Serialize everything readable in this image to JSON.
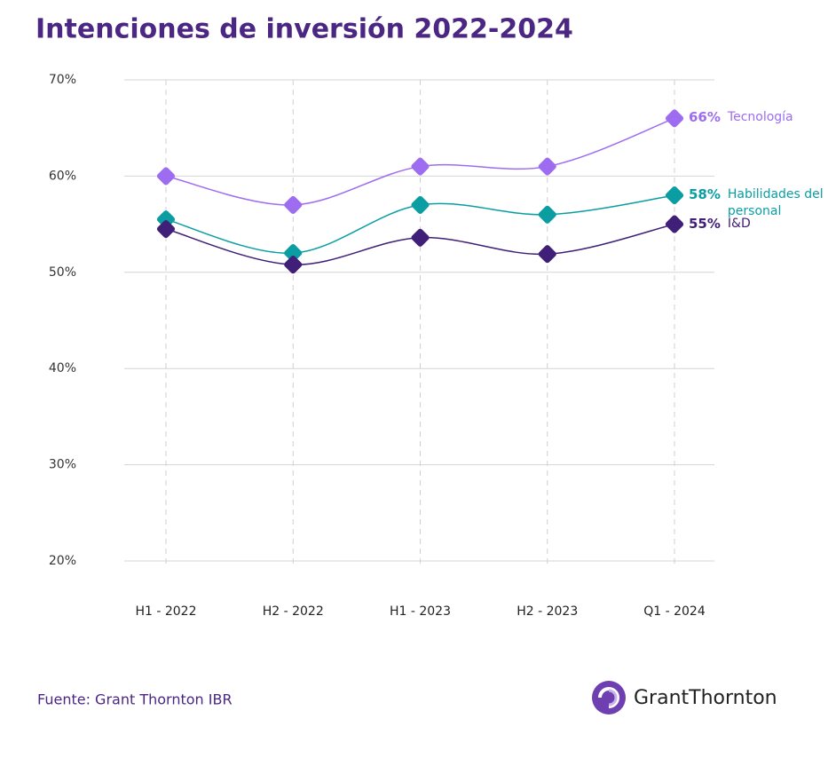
{
  "chart_data": {
    "type": "line",
    "title": "Intenciones de inversión 2022-2024",
    "categories": [
      "H1 - 2022",
      "H2 - 2022",
      "H1 - 2023",
      "H2 - 2023",
      "Q1 - 2024"
    ],
    "series": [
      {
        "name": "Tecnología",
        "color": "#9d6cf0",
        "values": [
          60,
          57,
          61,
          61,
          66
        ],
        "value_labels": [
          null,
          null,
          null,
          null,
          "66%"
        ]
      },
      {
        "name": "Habilidades del personal",
        "color": "#0a9ea3",
        "values": [
          55.5,
          52,
          57,
          56,
          58
        ],
        "value_labels": [
          null,
          null,
          null,
          null,
          "58%"
        ]
      },
      {
        "name": "I&D",
        "color": "#3f1f78",
        "values": [
          54.5,
          50.8,
          53.6,
          51.9,
          55
        ],
        "value_labels": [
          null,
          null,
          null,
          null,
          "55%"
        ]
      }
    ],
    "ylim": [
      20,
      70
    ],
    "yticks": [
      {
        "value": 20,
        "label": "20%"
      },
      {
        "value": 30,
        "label": "30%"
      },
      {
        "value": 40,
        "label": "40%"
      },
      {
        "value": 50,
        "label": "50%"
      },
      {
        "value": 60,
        "label": "60%"
      },
      {
        "value": 70,
        "label": "70%"
      }
    ],
    "grid": true,
    "source": "Fuente: Grant Thornton IBR",
    "logo": "GrantThornton"
  }
}
